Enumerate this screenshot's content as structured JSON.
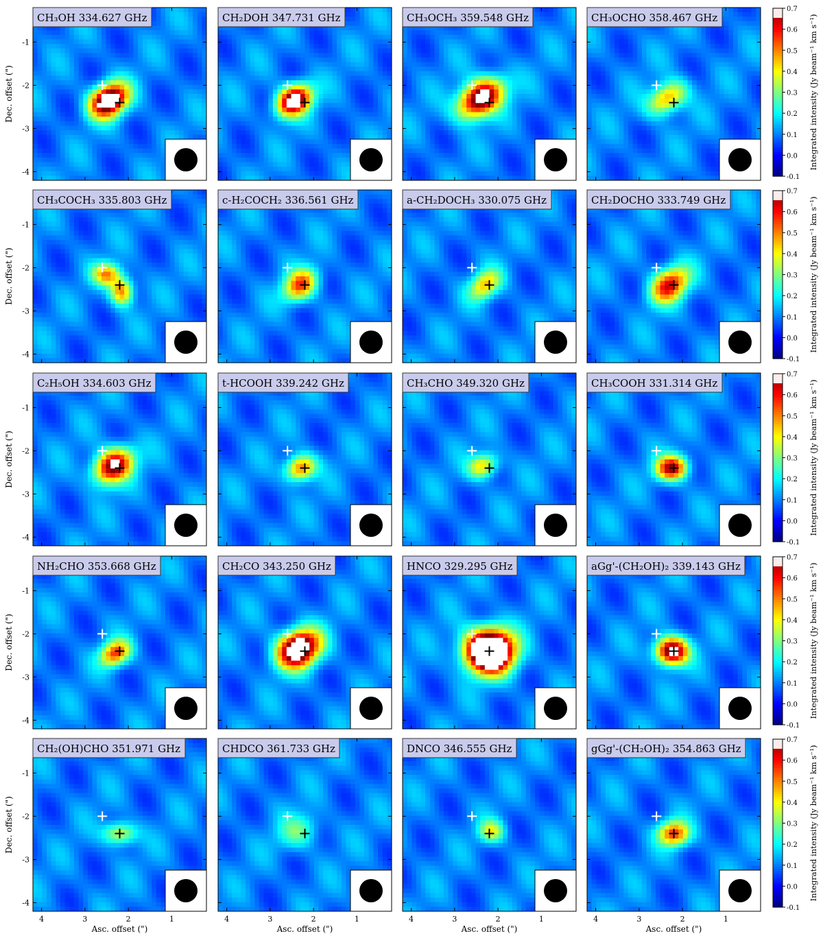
{
  "figure": {
    "xlabel": "Asc. offset (\")",
    "ylabel": "Dec. offset (\")",
    "colorbar_label": "Integrated intensity (Jy beam⁻¹ km s⁻¹)",
    "colorbar_ticks": [
      "0.7",
      "0.6",
      "0.5",
      "0.4",
      "0.3",
      "0.2",
      "0.1",
      "0.0",
      "-0.1"
    ],
    "x_tick_labels": [
      "4",
      "3",
      "2",
      "1"
    ],
    "y_tick_labels": [
      "-1",
      "-2",
      "-3",
      "-4"
    ]
  },
  "chart_data": {
    "type": "heatmap",
    "grid": "off",
    "xlabel": "Asc. offset (\")",
    "ylabel": "Dec. offset (\")",
    "xlim": [
      4.2,
      0.2
    ],
    "ylim": [
      -4.2,
      -0.2
    ],
    "x_ticks": [
      4,
      3,
      2,
      1
    ],
    "y_ticks": [
      -1,
      -2,
      -3,
      -4
    ],
    "colorbar": {
      "label": "Integrated intensity (Jy beam⁻¹ km s⁻¹)",
      "range": [
        -0.1,
        0.7
      ],
      "colormap": "jet"
    },
    "markers": {
      "white_cross": {
        "x": 2.6,
        "y": -2.0,
        "color": "#ffffff"
      },
      "black_cross": {
        "x": 2.2,
        "y": -2.4,
        "color": "#000000"
      }
    },
    "beam": {
      "location": "bottom-right"
    },
    "panels": [
      {
        "title": "CH3OH  334.627 GHz",
        "emission": [
          {
            "x": 2.45,
            "y": -2.35,
            "peak": 0.78,
            "sx": 0.32,
            "sy": 0.24,
            "rot": -35
          }
        ]
      },
      {
        "title": "CH2DOH  347.731 GHz",
        "emission": [
          {
            "x": 2.45,
            "y": -2.35,
            "peak": 0.72,
            "sx": 0.3,
            "sy": 0.22,
            "rot": -35
          }
        ]
      },
      {
        "title": "CH3OCH3  359.548 GHz",
        "emission": [
          {
            "x": 2.4,
            "y": -2.3,
            "peak": 0.72,
            "sx": 0.4,
            "sy": 0.26,
            "rot": -35
          }
        ]
      },
      {
        "title": "CH3OCHO  358.467 GHz",
        "emission": [
          {
            "x": 2.35,
            "y": -2.3,
            "peak": 0.4,
            "sx": 0.34,
            "sy": 0.22,
            "rot": -35
          }
        ]
      },
      {
        "title": "CH3COCH3  335.803 GHz",
        "emission": [
          {
            "x": 2.5,
            "y": -2.15,
            "peak": 0.38,
            "sx": 0.22,
            "sy": 0.18,
            "rot": 0
          },
          {
            "x": 2.15,
            "y": -2.55,
            "peak": 0.42,
            "sx": 0.18,
            "sy": 0.22,
            "rot": 0
          }
        ]
      },
      {
        "title": "c-H2COCH2  336.561 GHz",
        "emission": [
          {
            "x": 2.3,
            "y": -2.4,
            "peak": 0.45,
            "sx": 0.3,
            "sy": 0.22,
            "rot": -40
          }
        ]
      },
      {
        "title": "a-CH2DOCH3  330.075 GHz",
        "emission": [
          {
            "x": 2.3,
            "y": -2.4,
            "peak": 0.34,
            "sx": 0.28,
            "sy": 0.2,
            "rot": -40
          }
        ]
      },
      {
        "title": "CH2DOCHO  333.749 GHz",
        "emission": [
          {
            "x": 2.3,
            "y": -2.4,
            "peak": 0.52,
            "sx": 0.34,
            "sy": 0.24,
            "rot": -40
          }
        ]
      },
      {
        "title": "C2H5OH  334.603 GHz",
        "emission": [
          {
            "x": 2.35,
            "y": -2.35,
            "peak": 0.64,
            "sx": 0.34,
            "sy": 0.25,
            "rot": -35
          }
        ]
      },
      {
        "title": "t-HCOOH  339.242 GHz",
        "emission": [
          {
            "x": 2.3,
            "y": -2.4,
            "peak": 0.44,
            "sx": 0.25,
            "sy": 0.2,
            "rot": -25
          }
        ]
      },
      {
        "title": "CH3CHO  349.320 GHz",
        "emission": [
          {
            "x": 2.35,
            "y": -2.35,
            "peak": 0.34,
            "sx": 0.25,
            "sy": 0.19,
            "rot": -25
          }
        ]
      },
      {
        "title": "CH3COOH  331.314 GHz",
        "emission": [
          {
            "x": 2.25,
            "y": -2.4,
            "peak": 0.58,
            "sx": 0.25,
            "sy": 0.2,
            "rot": -10
          }
        ]
      },
      {
        "title": "NH2CHO  353.668 GHz",
        "emission": [
          {
            "x": 2.3,
            "y": -2.45,
            "peak": 0.46,
            "sx": 0.25,
            "sy": 0.19,
            "rot": -30
          }
        ]
      },
      {
        "title": "CH2CO  343.250 GHz",
        "emission": [
          {
            "x": 2.35,
            "y": -2.35,
            "peak": 0.8,
            "sx": 0.36,
            "sy": 0.28,
            "rot": -30
          }
        ]
      },
      {
        "title": "HNCO  329.295 GHz",
        "emission": [
          {
            "x": 2.2,
            "y": -2.4,
            "peak": 1.1,
            "sx": 0.38,
            "sy": 0.34,
            "rot": 0
          }
        ]
      },
      {
        "title": "aGg'-(CH2OH)2  339.143 GHz",
        "emission": [
          {
            "x": 2.25,
            "y": -2.4,
            "peak": 0.7,
            "sx": 0.26,
            "sy": 0.22,
            "rot": 0
          }
        ]
      },
      {
        "title": "CH2(OH)CHO  351.971 GHz",
        "emission": [
          {
            "x": 2.2,
            "y": -2.4,
            "peak": 0.3,
            "sx": 0.26,
            "sy": 0.18,
            "rot": 0
          }
        ]
      },
      {
        "title": "CHDCO  361.733 GHz",
        "emission": [
          {
            "x": 2.35,
            "y": -2.35,
            "peak": 0.18,
            "sx": 0.34,
            "sy": 0.26,
            "rot": -25
          }
        ]
      },
      {
        "title": "DNCO  346.555 GHz",
        "emission": [
          {
            "x": 2.15,
            "y": -2.35,
            "peak": 0.28,
            "sx": 0.2,
            "sy": 0.18,
            "rot": 0
          }
        ]
      },
      {
        "title": "gGg'-(CH2OH)2  354.863 GHz",
        "emission": [
          {
            "x": 2.2,
            "y": -2.4,
            "peak": 0.46,
            "sx": 0.25,
            "sy": 0.2,
            "rot": 0
          }
        ]
      }
    ]
  }
}
